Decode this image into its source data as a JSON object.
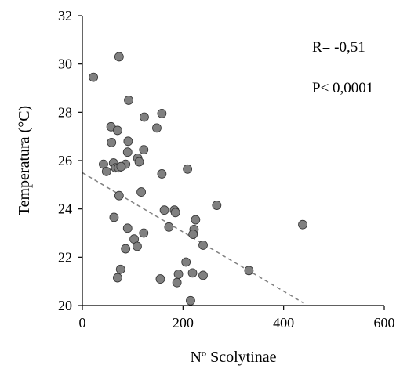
{
  "chart_data": {
    "type": "scatter",
    "xlabel": "Nº Scolytinae",
    "ylabel": "Temperatura (°C)",
    "xlim": [
      0,
      600
    ],
    "ylim": [
      20,
      32
    ],
    "xticks": [
      0,
      200,
      400,
      600
    ],
    "yticks": [
      20,
      22,
      24,
      26,
      28,
      30,
      32
    ],
    "grid": false,
    "annotations": [
      "R= -0,51",
      "P< 0,0001"
    ],
    "trendline": {
      "style": "dashed",
      "x": [
        0,
        440
      ],
      "y": [
        25.5,
        20.1
      ]
    },
    "colors": {
      "marker_fill": "#808080",
      "marker_stroke": "#333333",
      "trend": "#808080",
      "axis": "#000000"
    },
    "points": [
      [
        22,
        29.45
      ],
      [
        73,
        30.3
      ],
      [
        92,
        28.5
      ],
      [
        158,
        27.95
      ],
      [
        123,
        27.8
      ],
      [
        148,
        27.35
      ],
      [
        57,
        27.4
      ],
      [
        70,
        27.25
      ],
      [
        91,
        26.8
      ],
      [
        58,
        26.75
      ],
      [
        122,
        26.45
      ],
      [
        90,
        26.35
      ],
      [
        110,
        26.1
      ],
      [
        113,
        25.95
      ],
      [
        86,
        25.85
      ],
      [
        42,
        25.85
      ],
      [
        62,
        25.9
      ],
      [
        66,
        25.7
      ],
      [
        72,
        25.7
      ],
      [
        77,
        25.75
      ],
      [
        48,
        25.55
      ],
      [
        158,
        25.45
      ],
      [
        209,
        25.65
      ],
      [
        73,
        24.55
      ],
      [
        117,
        24.7
      ],
      [
        267,
        24.15
      ],
      [
        163,
        23.95
      ],
      [
        183,
        23.95
      ],
      [
        185,
        23.85
      ],
      [
        63,
        23.65
      ],
      [
        225,
        23.55
      ],
      [
        438,
        23.35
      ],
      [
        172,
        23.25
      ],
      [
        90,
        23.2
      ],
      [
        222,
        23.15
      ],
      [
        220,
        22.95
      ],
      [
        122,
        23.0
      ],
      [
        103,
        22.75
      ],
      [
        240,
        22.5
      ],
      [
        109,
        22.45
      ],
      [
        86,
        22.35
      ],
      [
        206,
        21.8
      ],
      [
        76,
        21.5
      ],
      [
        331,
        21.45
      ],
      [
        219,
        21.35
      ],
      [
        191,
        21.3
      ],
      [
        240,
        21.25
      ],
      [
        70,
        21.15
      ],
      [
        155,
        21.1
      ],
      [
        188,
        20.95
      ],
      [
        215,
        20.2
      ]
    ]
  }
}
